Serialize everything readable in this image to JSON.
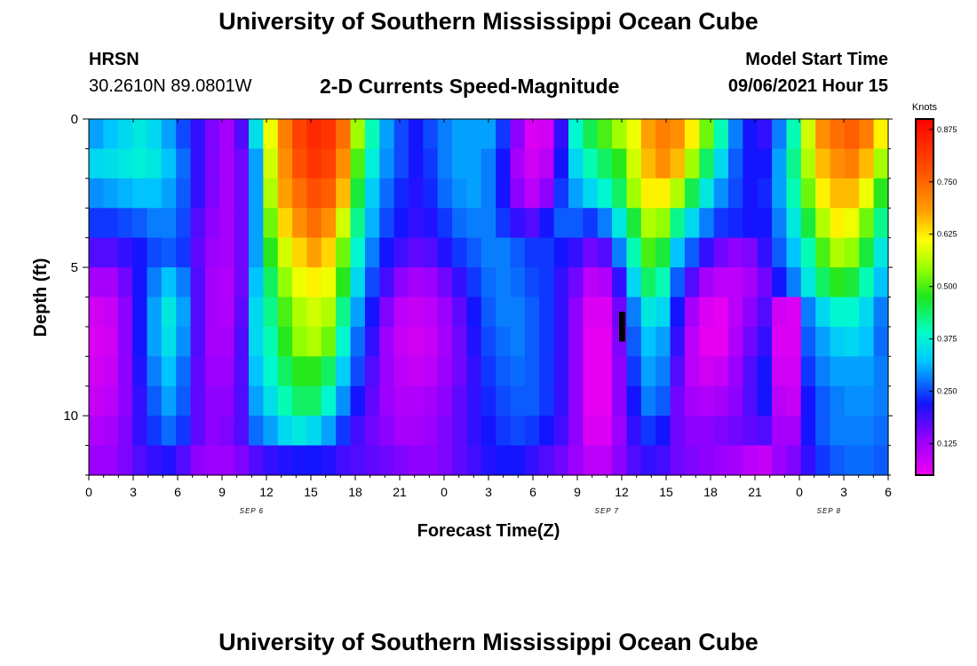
{
  "header": {
    "title": "University of Southern Mississippi Ocean Cube",
    "station": "HRSN",
    "coords": "30.2610N  89.0801W",
    "plot_title": "2-D Currents Speed-Magnitude",
    "model_start_label": "Model Start Time",
    "model_start_value": "09/06/2021 Hour 15"
  },
  "footer": {
    "title": "University of Southern Mississippi Ocean Cube"
  },
  "chart_data": {
    "type": "heatmap",
    "title": "2-D Currents Speed-Magnitude",
    "xlabel": "Forecast Time(Z)",
    "ylabel": "Depth (ft)",
    "x_ticks": [
      "0",
      "3",
      "6",
      "9",
      "12",
      "15",
      "18",
      "21",
      "0",
      "3",
      "6",
      "9",
      "12",
      "15",
      "18",
      "21",
      "0",
      "3",
      "6"
    ],
    "y_ticks": [
      "0",
      "5",
      "10"
    ],
    "ylim": [
      0,
      12
    ],
    "date_labels": [
      {
        "label": "SEP 6",
        "at_hour": 11
      },
      {
        "label": "SEP 7",
        "at_hour": 35
      },
      {
        "label": "SEP 8",
        "at_hour": 50
      }
    ],
    "x_hours": [
      0,
      1,
      2,
      3,
      4,
      5,
      6,
      7,
      8,
      9,
      10,
      11,
      12,
      13,
      14,
      15,
      16,
      17,
      18,
      19,
      20,
      21,
      22,
      23,
      24,
      25,
      26,
      27,
      28,
      29,
      30,
      31,
      32,
      33,
      34,
      35,
      36,
      37,
      38,
      39,
      40,
      41,
      42,
      43,
      44,
      45,
      46,
      47,
      48,
      49,
      50,
      51,
      52,
      53,
      54
    ],
    "depth_levels_ft": [
      0.5,
      1.5,
      2.5,
      3.5,
      4.5,
      5.5,
      6.5,
      7.5,
      8.5,
      9.5,
      10.5,
      11.5
    ],
    "colorbar": {
      "label": "Knots",
      "ticks": [
        "0.125",
        "0.250",
        "0.375",
        "0.500",
        "0.625",
        "0.750",
        "0.875"
      ],
      "min": 0.05,
      "max": 0.9
    },
    "values": [
      [
        0.3,
        0.32,
        0.34,
        0.36,
        0.34,
        0.3,
        0.25,
        0.2,
        0.15,
        0.12,
        0.18,
        0.35,
        0.6,
        0.72,
        0.8,
        0.84,
        0.82,
        0.74,
        0.55,
        0.4,
        0.3,
        0.25,
        0.22,
        0.25,
        0.28,
        0.3,
        0.3,
        0.3,
        0.24,
        0.14,
        0.07,
        0.08,
        0.2,
        0.38,
        0.45,
        0.5,
        0.55,
        0.6,
        0.68,
        0.72,
        0.7,
        0.62,
        0.52,
        0.4,
        0.28,
        0.22,
        0.2,
        0.28,
        0.4,
        0.58,
        0.7,
        0.74,
        0.76,
        0.72,
        0.62
      ],
      [
        0.34,
        0.35,
        0.36,
        0.37,
        0.36,
        0.32,
        0.27,
        0.2,
        0.15,
        0.12,
        0.16,
        0.3,
        0.58,
        0.7,
        0.78,
        0.82,
        0.8,
        0.7,
        0.5,
        0.37,
        0.29,
        0.25,
        0.22,
        0.24,
        0.28,
        0.3,
        0.3,
        0.28,
        0.22,
        0.12,
        0.08,
        0.1,
        0.22,
        0.34,
        0.4,
        0.44,
        0.48,
        0.58,
        0.66,
        0.7,
        0.66,
        0.55,
        0.44,
        0.34,
        0.26,
        0.22,
        0.22,
        0.3,
        0.42,
        0.56,
        0.66,
        0.7,
        0.72,
        0.66,
        0.55
      ],
      [
        0.29,
        0.3,
        0.31,
        0.32,
        0.32,
        0.3,
        0.26,
        0.2,
        0.15,
        0.12,
        0.16,
        0.3,
        0.56,
        0.68,
        0.74,
        0.78,
        0.76,
        0.66,
        0.46,
        0.33,
        0.27,
        0.23,
        0.21,
        0.23,
        0.27,
        0.29,
        0.3,
        0.28,
        0.22,
        0.14,
        0.1,
        0.14,
        0.24,
        0.3,
        0.34,
        0.38,
        0.44,
        0.55,
        0.62,
        0.62,
        0.56,
        0.45,
        0.36,
        0.29,
        0.25,
        0.22,
        0.23,
        0.3,
        0.4,
        0.52,
        0.62,
        0.66,
        0.66,
        0.6,
        0.48
      ],
      [
        0.24,
        0.24,
        0.25,
        0.26,
        0.28,
        0.28,
        0.25,
        0.18,
        0.14,
        0.12,
        0.16,
        0.3,
        0.52,
        0.64,
        0.7,
        0.74,
        0.7,
        0.58,
        0.42,
        0.31,
        0.25,
        0.22,
        0.2,
        0.21,
        0.24,
        0.27,
        0.28,
        0.28,
        0.24,
        0.2,
        0.18,
        0.22,
        0.26,
        0.26,
        0.24,
        0.28,
        0.36,
        0.46,
        0.56,
        0.54,
        0.42,
        0.34,
        0.28,
        0.24,
        0.23,
        0.22,
        0.22,
        0.28,
        0.36,
        0.46,
        0.56,
        0.62,
        0.6,
        0.52,
        0.42
      ],
      [
        0.18,
        0.18,
        0.2,
        0.22,
        0.25,
        0.26,
        0.24,
        0.17,
        0.13,
        0.12,
        0.16,
        0.3,
        0.48,
        0.58,
        0.64,
        0.68,
        0.64,
        0.52,
        0.38,
        0.28,
        0.22,
        0.19,
        0.17,
        0.18,
        0.21,
        0.24,
        0.26,
        0.28,
        0.28,
        0.26,
        0.24,
        0.24,
        0.22,
        0.2,
        0.16,
        0.18,
        0.28,
        0.4,
        0.5,
        0.46,
        0.32,
        0.26,
        0.2,
        0.16,
        0.14,
        0.15,
        0.2,
        0.26,
        0.32,
        0.4,
        0.5,
        0.56,
        0.54,
        0.46,
        0.36
      ],
      [
        0.12,
        0.12,
        0.16,
        0.22,
        0.28,
        0.32,
        0.28,
        0.18,
        0.12,
        0.11,
        0.16,
        0.32,
        0.44,
        0.54,
        0.6,
        0.62,
        0.6,
        0.48,
        0.34,
        0.25,
        0.19,
        0.14,
        0.12,
        0.13,
        0.16,
        0.2,
        0.24,
        0.27,
        0.28,
        0.27,
        0.25,
        0.24,
        0.2,
        0.16,
        0.1,
        0.11,
        0.2,
        0.34,
        0.44,
        0.4,
        0.26,
        0.18,
        0.12,
        0.1,
        0.1,
        0.12,
        0.16,
        0.22,
        0.28,
        0.36,
        0.44,
        0.48,
        0.46,
        0.4,
        0.32
      ],
      [
        0.08,
        0.09,
        0.14,
        0.22,
        0.3,
        0.36,
        0.3,
        0.18,
        0.12,
        0.11,
        0.17,
        0.34,
        0.42,
        0.5,
        0.56,
        0.58,
        0.56,
        0.42,
        0.3,
        0.22,
        0.15,
        0.1,
        0.09,
        0.1,
        0.13,
        0.17,
        0.22,
        0.26,
        0.28,
        0.28,
        0.26,
        0.24,
        0.2,
        0.14,
        0.07,
        0.07,
        0.16,
        0.28,
        0.36,
        0.34,
        0.22,
        0.12,
        0.07,
        0.06,
        0.1,
        0.14,
        0.18,
        0.08,
        0.07,
        0.28,
        0.34,
        0.38,
        0.38,
        0.34,
        0.28
      ],
      [
        0.07,
        0.08,
        0.14,
        0.22,
        0.3,
        0.35,
        0.29,
        0.18,
        0.12,
        0.12,
        0.18,
        0.34,
        0.4,
        0.48,
        0.54,
        0.56,
        0.52,
        0.38,
        0.27,
        0.2,
        0.13,
        0.09,
        0.08,
        0.09,
        0.12,
        0.16,
        0.21,
        0.25,
        0.27,
        0.28,
        0.26,
        0.24,
        0.2,
        0.14,
        0.06,
        0.06,
        0.15,
        0.26,
        0.32,
        0.3,
        0.2,
        0.1,
        0.06,
        0.06,
        0.11,
        0.16,
        0.2,
        0.07,
        0.07,
        0.26,
        0.3,
        0.33,
        0.34,
        0.32,
        0.27
      ],
      [
        0.08,
        0.09,
        0.14,
        0.21,
        0.28,
        0.32,
        0.27,
        0.17,
        0.13,
        0.13,
        0.18,
        0.32,
        0.38,
        0.44,
        0.48,
        0.48,
        0.44,
        0.33,
        0.25,
        0.18,
        0.13,
        0.1,
        0.09,
        0.1,
        0.13,
        0.16,
        0.2,
        0.24,
        0.26,
        0.27,
        0.26,
        0.24,
        0.2,
        0.14,
        0.06,
        0.06,
        0.14,
        0.24,
        0.3,
        0.28,
        0.18,
        0.1,
        0.08,
        0.09,
        0.13,
        0.18,
        0.22,
        0.08,
        0.08,
        0.24,
        0.28,
        0.3,
        0.3,
        0.3,
        0.28
      ],
      [
        0.09,
        0.1,
        0.14,
        0.2,
        0.26,
        0.3,
        0.26,
        0.17,
        0.14,
        0.14,
        0.18,
        0.3,
        0.35,
        0.4,
        0.44,
        0.44,
        0.38,
        0.29,
        0.22,
        0.17,
        0.13,
        0.11,
        0.11,
        0.12,
        0.14,
        0.17,
        0.2,
        0.23,
        0.25,
        0.26,
        0.26,
        0.24,
        0.2,
        0.14,
        0.06,
        0.06,
        0.14,
        0.22,
        0.28,
        0.26,
        0.16,
        0.12,
        0.11,
        0.12,
        0.14,
        0.18,
        0.22,
        0.1,
        0.09,
        0.22,
        0.26,
        0.28,
        0.29,
        0.29,
        0.28
      ],
      [
        0.11,
        0.12,
        0.15,
        0.2,
        0.24,
        0.27,
        0.24,
        0.17,
        0.14,
        0.15,
        0.18,
        0.27,
        0.3,
        0.34,
        0.36,
        0.34,
        0.3,
        0.24,
        0.19,
        0.16,
        0.14,
        0.12,
        0.12,
        0.13,
        0.15,
        0.17,
        0.2,
        0.22,
        0.24,
        0.25,
        0.24,
        0.22,
        0.19,
        0.14,
        0.07,
        0.07,
        0.13,
        0.2,
        0.24,
        0.22,
        0.16,
        0.14,
        0.14,
        0.15,
        0.16,
        0.17,
        0.18,
        0.12,
        0.12,
        0.22,
        0.26,
        0.28,
        0.28,
        0.28,
        0.27
      ],
      [
        0.13,
        0.13,
        0.15,
        0.18,
        0.2,
        0.21,
        0.18,
        0.14,
        0.13,
        0.13,
        0.15,
        0.18,
        0.2,
        0.21,
        0.22,
        0.22,
        0.21,
        0.19,
        0.18,
        0.17,
        0.16,
        0.15,
        0.14,
        0.14,
        0.15,
        0.17,
        0.19,
        0.21,
        0.22,
        0.22,
        0.2,
        0.18,
        0.16,
        0.13,
        0.1,
        0.1,
        0.14,
        0.18,
        0.2,
        0.19,
        0.16,
        0.15,
        0.14,
        0.13,
        0.12,
        0.1,
        0.09,
        0.13,
        0.15,
        0.2,
        0.24,
        0.26,
        0.27,
        0.27,
        0.26
      ]
    ]
  }
}
